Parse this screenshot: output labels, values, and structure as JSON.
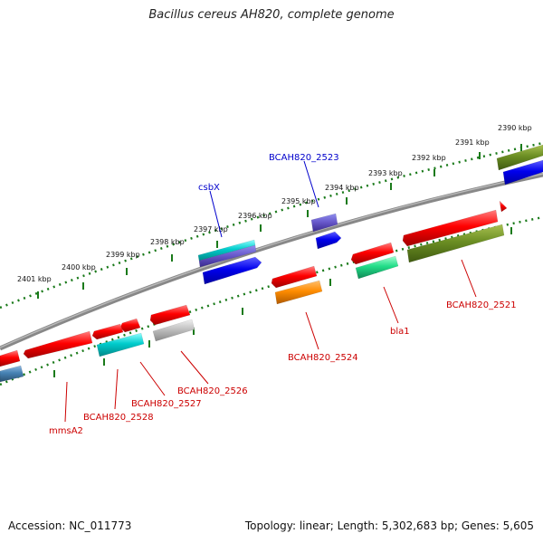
{
  "title": "Bacillus cereus AH820, complete genome",
  "footer": {
    "accession": "Accession: NC_011773",
    "topology": "Topology: linear; Length: 5,302,683 bp; Genes: 5,605"
  },
  "ticks": [
    "2390 kbp",
    "2391 kbp",
    "2392 kbp",
    "2393 kbp",
    "2394 kbp",
    "2395 kbp",
    "2396 kbp",
    "2397 kbp",
    "2398 kbp",
    "2399 kbp",
    "2400 kbp",
    "2401 kbp"
  ],
  "labels": {
    "csbX": "csbX",
    "BCAH820_2523": "BCAH820_2523",
    "BCAH820_2521": "BCAH820_2521",
    "bla1": "bla1",
    "BCAH820_2524": "BCAH820_2524",
    "BCAH820_2526": "BCAH820_2526",
    "BCAH820_2527": "BCAH820_2527",
    "BCAH820_2528": "BCAH820_2528",
    "mmsA2": "mmsA2"
  },
  "colors": {
    "forward_label": "#0000cc",
    "reverse_label": "#cc0000",
    "backbone": "#888888",
    "tick": "#1a7a1a"
  }
}
